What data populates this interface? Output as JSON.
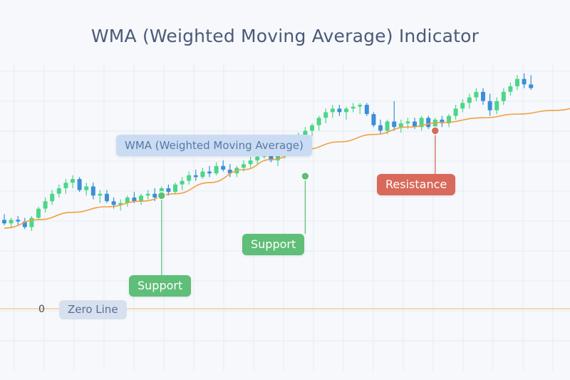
{
  "title": "WMA (Weighted Moving Average) Indicator",
  "labels": {
    "wma": "WMA (Weighted Moving Average)",
    "resistance": "Resistance",
    "support_right": "Support",
    "support_left": "Support",
    "zero_line": "Zero Line",
    "zero_value": "0"
  },
  "colors": {
    "bull": "#4bd68a",
    "bear": "#3c8fd8",
    "wma_line": "#f0a040",
    "support": "#5fbe77",
    "resistance": "#d9695a",
    "zero_line": "#f4c48a",
    "grid": "#e6ebf2"
  },
  "chart_data": {
    "type": "candlestick",
    "title": "WMA (Weighted Moving Average) Indicator",
    "ylim": [
      0,
      130
    ],
    "grid": true,
    "candles": [
      {
        "o": 48,
        "h": 51,
        "l": 45,
        "c": 46
      },
      {
        "o": 46,
        "h": 49,
        "l": 44,
        "c": 48
      },
      {
        "o": 48,
        "h": 50,
        "l": 45,
        "c": 47
      },
      {
        "o": 47,
        "h": 49,
        "l": 43,
        "c": 44
      },
      {
        "o": 44,
        "h": 50,
        "l": 42,
        "c": 49
      },
      {
        "o": 49,
        "h": 55,
        "l": 48,
        "c": 54
      },
      {
        "o": 54,
        "h": 60,
        "l": 52,
        "c": 58
      },
      {
        "o": 58,
        "h": 64,
        "l": 56,
        "c": 62
      },
      {
        "o": 62,
        "h": 67,
        "l": 60,
        "c": 65
      },
      {
        "o": 65,
        "h": 70,
        "l": 62,
        "c": 68
      },
      {
        "o": 68,
        "h": 72,
        "l": 65,
        "c": 70
      },
      {
        "o": 70,
        "h": 71,
        "l": 63,
        "c": 64
      },
      {
        "o": 64,
        "h": 68,
        "l": 61,
        "c": 66
      },
      {
        "o": 66,
        "h": 68,
        "l": 59,
        "c": 61
      },
      {
        "o": 61,
        "h": 64,
        "l": 57,
        "c": 62
      },
      {
        "o": 62,
        "h": 64,
        "l": 57,
        "c": 58
      },
      {
        "o": 58,
        "h": 60,
        "l": 54,
        "c": 56
      },
      {
        "o": 56,
        "h": 59,
        "l": 53,
        "c": 57
      },
      {
        "o": 57,
        "h": 61,
        "l": 55,
        "c": 60
      },
      {
        "o": 60,
        "h": 63,
        "l": 57,
        "c": 58
      },
      {
        "o": 58,
        "h": 62,
        "l": 56,
        "c": 61
      },
      {
        "o": 61,
        "h": 64,
        "l": 59,
        "c": 62
      },
      {
        "o": 62,
        "h": 65,
        "l": 58,
        "c": 60
      },
      {
        "o": 60,
        "h": 66,
        "l": 59,
        "c": 65
      },
      {
        "o": 65,
        "h": 67,
        "l": 61,
        "c": 63
      },
      {
        "o": 63,
        "h": 68,
        "l": 62,
        "c": 67
      },
      {
        "o": 67,
        "h": 71,
        "l": 64,
        "c": 69
      },
      {
        "o": 69,
        "h": 74,
        "l": 67,
        "c": 72
      },
      {
        "o": 72,
        "h": 75,
        "l": 69,
        "c": 71
      },
      {
        "o": 71,
        "h": 76,
        "l": 70,
        "c": 74
      },
      {
        "o": 74,
        "h": 77,
        "l": 71,
        "c": 73
      },
      {
        "o": 73,
        "h": 79,
        "l": 72,
        "c": 77
      },
      {
        "o": 77,
        "h": 80,
        "l": 74,
        "c": 75
      },
      {
        "o": 75,
        "h": 78,
        "l": 71,
        "c": 73
      },
      {
        "o": 73,
        "h": 77,
        "l": 71,
        "c": 76
      },
      {
        "o": 76,
        "h": 80,
        "l": 74,
        "c": 78
      },
      {
        "o": 78,
        "h": 82,
        "l": 76,
        "c": 80
      },
      {
        "o": 80,
        "h": 84,
        "l": 78,
        "c": 82
      },
      {
        "o": 82,
        "h": 92,
        "l": 81,
        "c": 86
      },
      {
        "o": 86,
        "h": 87,
        "l": 79,
        "c": 80
      },
      {
        "o": 80,
        "h": 84,
        "l": 77,
        "c": 83
      },
      {
        "o": 83,
        "h": 88,
        "l": 81,
        "c": 87
      },
      {
        "o": 87,
        "h": 92,
        "l": 85,
        "c": 90
      },
      {
        "o": 90,
        "h": 95,
        "l": 88,
        "c": 93
      },
      {
        "o": 93,
        "h": 98,
        "l": 90,
        "c": 96
      },
      {
        "o": 96,
        "h": 100,
        "l": 93,
        "c": 99
      },
      {
        "o": 99,
        "h": 104,
        "l": 96,
        "c": 103
      },
      {
        "o": 103,
        "h": 108,
        "l": 100,
        "c": 106
      },
      {
        "o": 106,
        "h": 110,
        "l": 103,
        "c": 108
      },
      {
        "o": 108,
        "h": 110,
        "l": 104,
        "c": 106
      },
      {
        "o": 106,
        "h": 109,
        "l": 102,
        "c": 108
      },
      {
        "o": 108,
        "h": 111,
        "l": 106,
        "c": 109
      },
      {
        "o": 109,
        "h": 111,
        "l": 105,
        "c": 110
      },
      {
        "o": 110,
        "h": 111,
        "l": 104,
        "c": 105
      },
      {
        "o": 105,
        "h": 106,
        "l": 98,
        "c": 99
      },
      {
        "o": 99,
        "h": 102,
        "l": 94,
        "c": 96
      },
      {
        "o": 96,
        "h": 102,
        "l": 94,
        "c": 101
      },
      {
        "o": 101,
        "h": 112,
        "l": 96,
        "c": 98
      },
      {
        "o": 98,
        "h": 102,
        "l": 95,
        "c": 100
      },
      {
        "o": 100,
        "h": 103,
        "l": 97,
        "c": 101
      },
      {
        "o": 101,
        "h": 103,
        "l": 97,
        "c": 98
      },
      {
        "o": 98,
        "h": 104,
        "l": 96,
        "c": 103
      },
      {
        "o": 103,
        "h": 104,
        "l": 97,
        "c": 98
      },
      {
        "o": 98,
        "h": 103,
        "l": 96,
        "c": 102
      },
      {
        "o": 102,
        "h": 104,
        "l": 98,
        "c": 100
      },
      {
        "o": 100,
        "h": 105,
        "l": 98,
        "c": 104
      },
      {
        "o": 104,
        "h": 110,
        "l": 102,
        "c": 108
      },
      {
        "o": 108,
        "h": 113,
        "l": 106,
        "c": 111
      },
      {
        "o": 111,
        "h": 116,
        "l": 108,
        "c": 114
      },
      {
        "o": 114,
        "h": 119,
        "l": 112,
        "c": 117
      },
      {
        "o": 117,
        "h": 119,
        "l": 110,
        "c": 112
      },
      {
        "o": 112,
        "h": 116,
        "l": 104,
        "c": 107
      },
      {
        "o": 107,
        "h": 114,
        "l": 105,
        "c": 112
      },
      {
        "o": 112,
        "h": 119,
        "l": 110,
        "c": 117
      },
      {
        "o": 117,
        "h": 122,
        "l": 115,
        "c": 120
      },
      {
        "o": 120,
        "h": 126,
        "l": 118,
        "c": 124
      },
      {
        "o": 124,
        "h": 127,
        "l": 119,
        "c": 121
      },
      {
        "o": 121,
        "h": 126,
        "l": 118,
        "c": 119
      }
    ],
    "wma": [
      [
        0,
        43.5
      ],
      [
        10,
        48
      ],
      [
        20,
        52
      ],
      [
        30,
        55
      ],
      [
        40,
        58
      ],
      [
        50,
        62
      ],
      [
        60,
        68
      ],
      [
        70,
        75
      ],
      [
        78,
        80.5
      ],
      [
        88,
        86
      ],
      [
        98,
        90
      ],
      [
        108,
        94
      ],
      [
        118,
        98
      ],
      [
        128,
        100.5
      ],
      [
        140,
        103
      ],
      [
        150,
        105
      ],
      [
        161,
        107
      ],
      [
        171,
        109.5
      ],
      [
        180,
        112
      ]
    ],
    "annotations": [
      {
        "label": "Support",
        "x": 23,
        "y": 61
      },
      {
        "label": "Support",
        "x": 44,
        "y": 71.5
      },
      {
        "label": "Resistance",
        "x": 63,
        "y": 96
      },
      {
        "label": "WMA (Weighted Moving Average)",
        "x": 40,
        "y": 81
      }
    ],
    "zero_line": 0
  }
}
